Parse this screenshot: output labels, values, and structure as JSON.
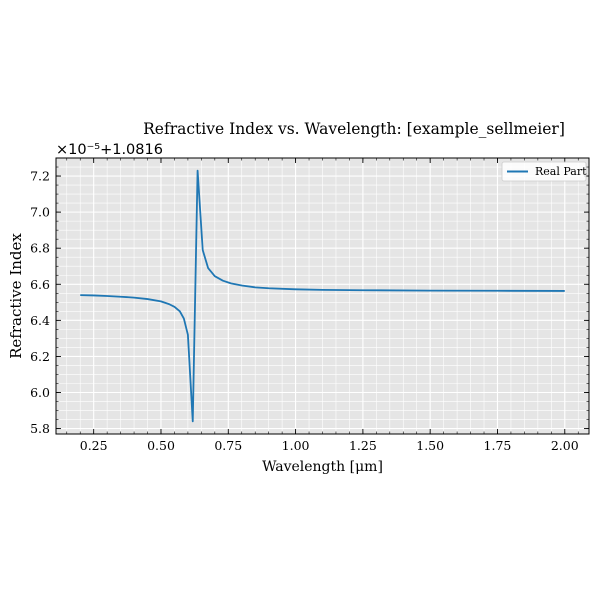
{
  "chart_data": {
    "type": "line",
    "title": "Refractive Index vs. Wavelength: [example_sellmeier]",
    "xlabel": "Wavelength [μm]",
    "ylabel": "Refractive Index",
    "offset_label": "×10⁻⁵+1.0816",
    "xlim": [
      0.11,
      2.09
    ],
    "ylim": [
      5.77,
      7.3
    ],
    "y_display": "relative: displayed value = (n − 1.0816) × 1e5",
    "xticks": [
      0.25,
      0.5,
      0.75,
      1.0,
      1.25,
      1.5,
      1.75,
      2.0
    ],
    "xtick_labels": [
      "0.25",
      "0.50",
      "0.75",
      "1.00",
      "1.25",
      "1.50",
      "1.75",
      "2.00"
    ],
    "yticks": [
      5.8,
      6.0,
      6.2,
      6.4,
      6.6,
      6.8,
      7.0,
      7.2
    ],
    "ytick_labels": [
      "5.8",
      "6.0",
      "6.2",
      "6.4",
      "6.6",
      "6.8",
      "7.0",
      "7.2"
    ],
    "grid": true,
    "legend": "top-right",
    "series": [
      {
        "name": "Real Part",
        "color": "#1f77b4",
        "x": [
          0.2,
          0.25,
          0.3,
          0.35,
          0.4,
          0.45,
          0.5,
          0.53,
          0.55,
          0.57,
          0.585,
          0.6,
          0.618,
          0.636,
          0.655,
          0.675,
          0.7,
          0.73,
          0.76,
          0.8,
          0.85,
          0.9,
          1.0,
          1.1,
          1.25,
          1.5,
          1.75,
          2.0
        ],
        "y": [
          6.54,
          6.538,
          6.535,
          6.531,
          6.526,
          6.518,
          6.505,
          6.49,
          6.475,
          6.45,
          6.41,
          6.32,
          5.84,
          7.23,
          6.79,
          6.69,
          6.645,
          6.62,
          6.605,
          6.593,
          6.583,
          6.578,
          6.572,
          6.569,
          6.567,
          6.565,
          6.564,
          6.563
        ]
      }
    ]
  }
}
